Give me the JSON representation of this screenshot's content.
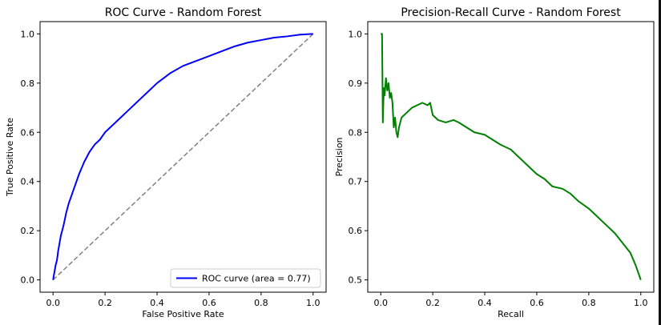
{
  "chart_data": [
    {
      "type": "line",
      "title": "ROC Curve - Random Forest",
      "xlabel": "False Positive Rate",
      "ylabel": "True Positive Rate",
      "xlim": [
        -0.05,
        1.05
      ],
      "ylim": [
        -0.05,
        1.05
      ],
      "xticks": [
        "0.0",
        "0.2",
        "0.4",
        "0.6",
        "0.8",
        "1.0"
      ],
      "yticks": [
        "0.0",
        "0.2",
        "0.4",
        "0.6",
        "0.8",
        "1.0"
      ],
      "legend": {
        "placement": "lower-right",
        "entries": [
          "ROC curve (area = 0.77)"
        ]
      },
      "grid": false,
      "series": [
        {
          "name": "ROC curve (area = 0.77)",
          "color": "#0000ff",
          "style": "solid",
          "x": [
            0.0,
            0.005,
            0.01,
            0.015,
            0.02,
            0.03,
            0.04,
            0.05,
            0.06,
            0.07,
            0.08,
            0.09,
            0.1,
            0.12,
            0.14,
            0.16,
            0.18,
            0.2,
            0.22,
            0.24,
            0.26,
            0.28,
            0.3,
            0.33,
            0.36,
            0.4,
            0.45,
            0.5,
            0.55,
            0.6,
            0.65,
            0.7,
            0.75,
            0.8,
            0.85,
            0.9,
            0.95,
            1.0
          ],
          "y": [
            0.0,
            0.03,
            0.06,
            0.08,
            0.12,
            0.18,
            0.22,
            0.27,
            0.31,
            0.34,
            0.37,
            0.4,
            0.43,
            0.48,
            0.52,
            0.55,
            0.57,
            0.6,
            0.62,
            0.64,
            0.66,
            0.68,
            0.7,
            0.73,
            0.76,
            0.8,
            0.84,
            0.87,
            0.89,
            0.91,
            0.93,
            0.95,
            0.965,
            0.975,
            0.985,
            0.99,
            0.997,
            1.0
          ]
        },
        {
          "color": "#808080",
          "style": "dashed",
          "x": [
            0.0,
            1.0
          ],
          "y": [
            0.0,
            1.0
          ]
        }
      ]
    },
    {
      "type": "line",
      "title": "Precision-Recall Curve - Random Forest",
      "xlabel": "Recall",
      "ylabel": "Precision",
      "xlim": [
        -0.05,
        1.05
      ],
      "ylim": [
        0.475,
        1.025
      ],
      "xticks": [
        "0.0",
        "0.2",
        "0.4",
        "0.6",
        "0.8",
        "1.0"
      ],
      "yticks": [
        "0.5",
        "0.6",
        "0.7",
        "0.8",
        "0.9",
        "1.0"
      ],
      "grid": false,
      "series": [
        {
          "color": "#008000",
          "style": "solid",
          "x": [
            0.0,
            0.005,
            0.008,
            0.01,
            0.012,
            0.015,
            0.02,
            0.025,
            0.03,
            0.035,
            0.04,
            0.045,
            0.05,
            0.055,
            0.06,
            0.065,
            0.07,
            0.08,
            0.09,
            0.1,
            0.12,
            0.14,
            0.16,
            0.18,
            0.19,
            0.2,
            0.22,
            0.25,
            0.28,
            0.3,
            0.33,
            0.36,
            0.4,
            0.43,
            0.46,
            0.5,
            0.53,
            0.56,
            0.6,
            0.63,
            0.66,
            0.7,
            0.73,
            0.76,
            0.8,
            0.83,
            0.87,
            0.9,
            0.93,
            0.96,
            0.98,
            1.0
          ],
          "y": [
            1.0,
            1.0,
            0.82,
            0.86,
            0.89,
            0.875,
            0.91,
            0.885,
            0.9,
            0.87,
            0.88,
            0.86,
            0.81,
            0.83,
            0.8,
            0.79,
            0.81,
            0.83,
            0.835,
            0.84,
            0.85,
            0.855,
            0.86,
            0.855,
            0.86,
            0.835,
            0.825,
            0.82,
            0.825,
            0.82,
            0.81,
            0.8,
            0.795,
            0.785,
            0.775,
            0.765,
            0.75,
            0.735,
            0.715,
            0.705,
            0.69,
            0.685,
            0.675,
            0.66,
            0.645,
            0.63,
            0.61,
            0.595,
            0.575,
            0.555,
            0.53,
            0.5
          ]
        }
      ]
    }
  ]
}
